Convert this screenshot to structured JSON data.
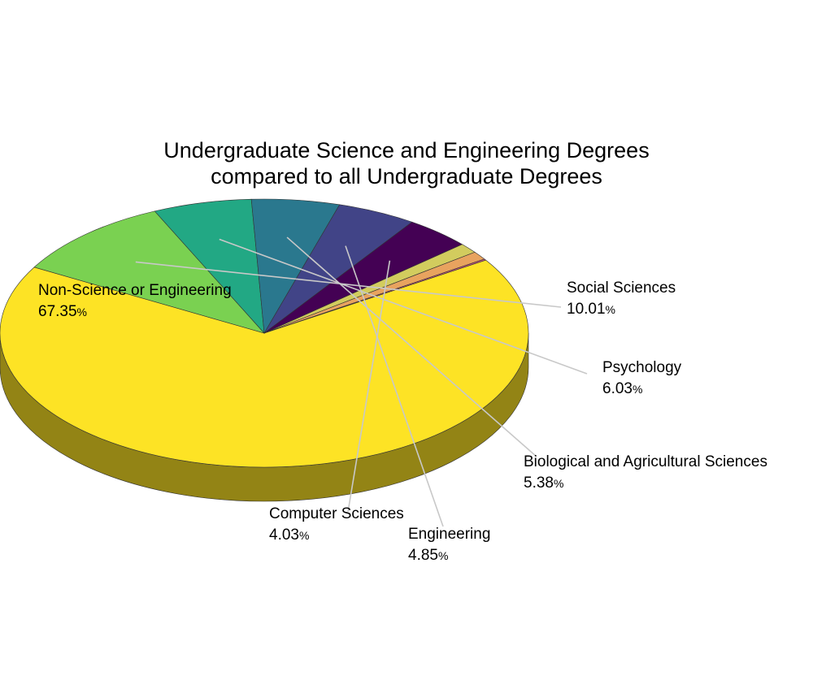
{
  "chart_data": {
    "type": "pie",
    "title": "Undergraduate Science and Engineering Degrees",
    "subtitle": "compared to all Undergraduate Degrees",
    "slices": [
      {
        "label": "Non-Science or Engineering",
        "value": 67.35,
        "value_text": "67.35",
        "unit": "%",
        "color": "#fde325",
        "labeled": true
      },
      {
        "label": "Social Sciences",
        "value": 10.01,
        "value_text": "10.01",
        "unit": "%",
        "color": "#7ad151",
        "labeled": true
      },
      {
        "label": "Psychology",
        "value": 6.03,
        "value_text": "6.03",
        "unit": "%",
        "color": "#22a884",
        "labeled": true
      },
      {
        "label": "Biological and Agricultural Sciences",
        "value": 5.38,
        "value_text": "5.38",
        "unit": "%",
        "color": "#2a788e",
        "labeled": true
      },
      {
        "label": "Engineering",
        "value": 4.85,
        "value_text": "4.85",
        "unit": "%",
        "color": "#414487",
        "labeled": true
      },
      {
        "label": "Computer Sciences",
        "value": 4.03,
        "value_text": "4.03",
        "unit": "%",
        "color": "#440154",
        "labeled": true
      },
      {
        "label": "",
        "value": 1.2,
        "color": "#d2cc5e",
        "labeled": false
      },
      {
        "label": "",
        "value": 1.0,
        "color": "#e8a35f",
        "labeled": false
      },
      {
        "label": "",
        "value": 0.15,
        "color": "#c2557a",
        "labeled": false
      }
    ]
  }
}
